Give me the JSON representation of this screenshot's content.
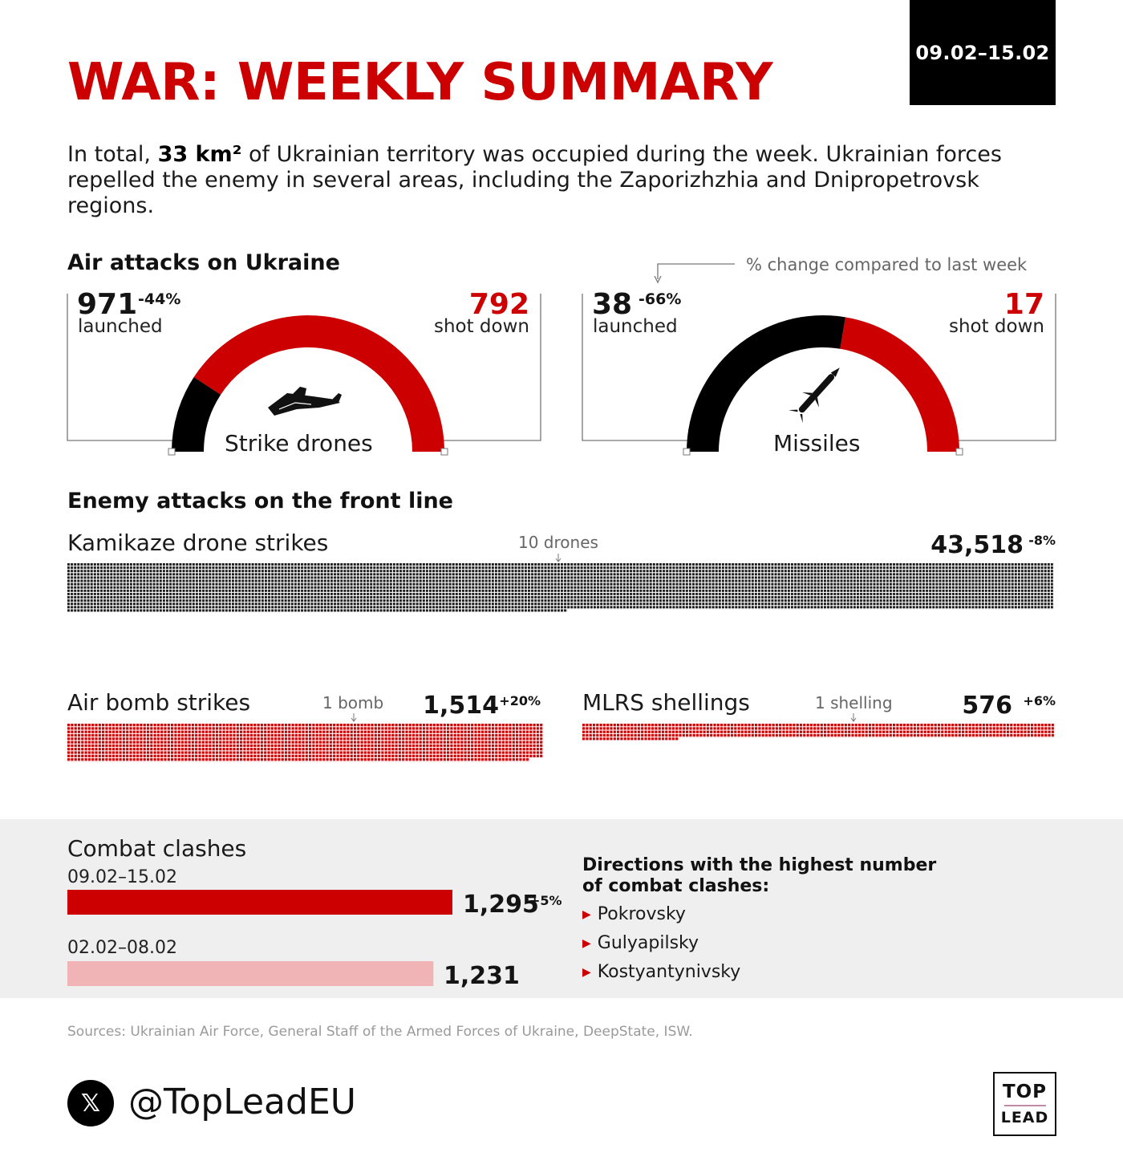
{
  "header": {
    "title": "WAR: WEEKLY SUMMARY",
    "date_range": "09.02–15.02"
  },
  "intro": {
    "prefix": "In total, ",
    "highlight": "33 km²",
    "suffix": " of Ukrainian territory was occupied during the week. Ukrainian forces repelled the enemy in several areas, including the Zaporizhzhia and Dnipropetrovsk regions."
  },
  "air_attacks": {
    "heading": "Air attacks on Ukraine",
    "legend_note": "% change compared to last week",
    "drones": {
      "launched_value": "971",
      "launched_change": "-44%",
      "launched_label": "launched",
      "shot_value": "792",
      "shot_label": "shot down",
      "name": "Strike drones",
      "icon": "drone-icon"
    },
    "missiles": {
      "launched_value": "38",
      "launched_change": "-66%",
      "launched_label": "launched",
      "shot_value": "17",
      "shot_label": "shot down",
      "name": "Missiles",
      "icon": "missile-icon"
    }
  },
  "front_line": {
    "heading": "Enemy attacks on the front line",
    "kamikaze": {
      "label": "Kamikaze drone strikes",
      "unit_note": "10 drones",
      "value": "43,518",
      "change": "-8%"
    },
    "air_bomb": {
      "label": "Air bomb strikes",
      "unit_note": "1 bomb",
      "value": "1,514",
      "change": "+20%"
    },
    "mlrs": {
      "label": "MLRS shellings",
      "unit_note": "1 shelling",
      "value": "576",
      "change": "+6%"
    }
  },
  "combat": {
    "heading": "Combat clashes",
    "current": {
      "period": "09.02–15.02",
      "value": "1,295",
      "change": "+5%"
    },
    "previous": {
      "period": "02.02–08.02",
      "value": "1,231"
    },
    "directions_title": "Directions with the highest number of combat clashes:",
    "directions": [
      "Pokrovsky",
      "Gulyapilsky",
      "Kostyantynivsky"
    ]
  },
  "footer": {
    "sources": "Sources: Ukrainian Air Force, General Staff of the Armed Forces of Ukraine, DeepState, ISW.",
    "handle": "@TopLeadEU",
    "logo_top": "TOP",
    "logo_bottom": "LEAD"
  },
  "colors": {
    "accent": "#cc0000",
    "dark": "#000000",
    "light_red": "#f1b4b6",
    "band": "#efefef"
  },
  "chart_data": [
    {
      "type": "pie",
      "title": "Strike drones",
      "categories": [
        "shot down",
        "not shot down"
      ],
      "values": [
        792,
        179
      ],
      "total_launched": 971
    },
    {
      "type": "pie",
      "title": "Missiles",
      "categories": [
        "shot down",
        "not shot down"
      ],
      "values": [
        17,
        21
      ],
      "total_launched": 38
    },
    {
      "type": "bar",
      "title": "Kamikaze drone strikes",
      "categories": [
        "Kamikaze drone strikes"
      ],
      "values": [
        43518
      ],
      "unit_per_mark": 10
    },
    {
      "type": "bar",
      "title": "Air bomb strikes",
      "categories": [
        "Air bomb strikes"
      ],
      "values": [
        1514
      ],
      "unit_per_mark": 1
    },
    {
      "type": "bar",
      "title": "MLRS shellings",
      "categories": [
        "MLRS shellings"
      ],
      "values": [
        576
      ],
      "unit_per_mark": 1
    },
    {
      "type": "bar",
      "title": "Combat clashes",
      "categories": [
        "09.02–15.02",
        "02.02–08.02"
      ],
      "values": [
        1295,
        1231
      ]
    }
  ]
}
